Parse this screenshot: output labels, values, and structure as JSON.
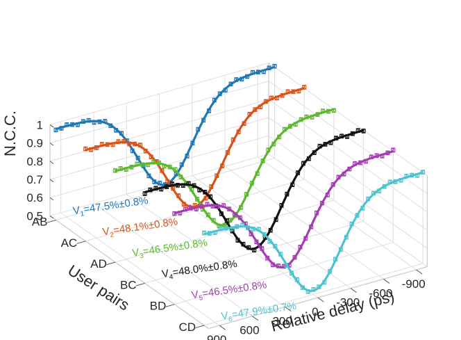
{
  "chart_data": {
    "type": "line",
    "subtype": "3d-waterfall",
    "title": "",
    "xlabel": "Relative delay (ps)",
    "ylabel": "User pairs",
    "zlabel": "N.C.C.",
    "xlim": [
      -1000,
      1000
    ],
    "zlim": [
      0.5,
      1.0
    ],
    "x_ticks": [
      -900,
      -600,
      -300,
      0,
      300,
      600,
      900
    ],
    "x_tick_labels": [
      "-900",
      "-600",
      "-300",
      "0",
      "300",
      "600",
      "900"
    ],
    "z_ticks": [
      0.5,
      0.6,
      0.7,
      0.8,
      0.9,
      1
    ],
    "z_tick_labels": [
      "0.5",
      "0.6",
      "0.7",
      "0.8",
      "0.9",
      "1"
    ],
    "categories": [
      "AB",
      "AC",
      "AD",
      "BC",
      "BD",
      "CD"
    ],
    "grid": true,
    "series": [
      {
        "name": "AB",
        "color": "#1f77b4",
        "visibility_label": "V",
        "visibility_subscript": "1",
        "visibility_text": "=47.5%±0.8%",
        "baseline": 1.0,
        "visibility": 0.475,
        "width_ps": 250,
        "error": 0.01
      },
      {
        "name": "AC",
        "color": "#d95319",
        "visibility_label": "V",
        "visibility_subscript": "2",
        "visibility_text": "=48.1%±0.8%",
        "baseline": 1.0,
        "visibility": 0.481,
        "width_ps": 250,
        "error": 0.01
      },
      {
        "name": "AD",
        "color": "#5cb82e",
        "visibility_label": "V",
        "visibility_subscript": "3",
        "visibility_text": "=46.5%±0.8%",
        "baseline": 1.0,
        "visibility": 0.465,
        "width_ps": 250,
        "error": 0.01
      },
      {
        "name": "BC",
        "color": "#111111",
        "visibility_label": "V",
        "visibility_subscript": "4",
        "visibility_text": "=48.0%±0.8%",
        "baseline": 1.0,
        "visibility": 0.48,
        "width_ps": 250,
        "error": 0.01
      },
      {
        "name": "BD",
        "color": "#a23fb0",
        "visibility_label": "V",
        "visibility_subscript": "5",
        "visibility_text": "=46.5%±0.8%",
        "baseline": 1.0,
        "visibility": 0.465,
        "width_ps": 250,
        "error": 0.01
      },
      {
        "name": "CD",
        "color": "#4dc3cf",
        "visibility_label": "V",
        "visibility_subscript": "6",
        "visibility_text": "=47.9%±0.7%",
        "baseline": 1.0,
        "visibility": 0.479,
        "width_ps": 250,
        "error": 0.01
      }
    ]
  }
}
